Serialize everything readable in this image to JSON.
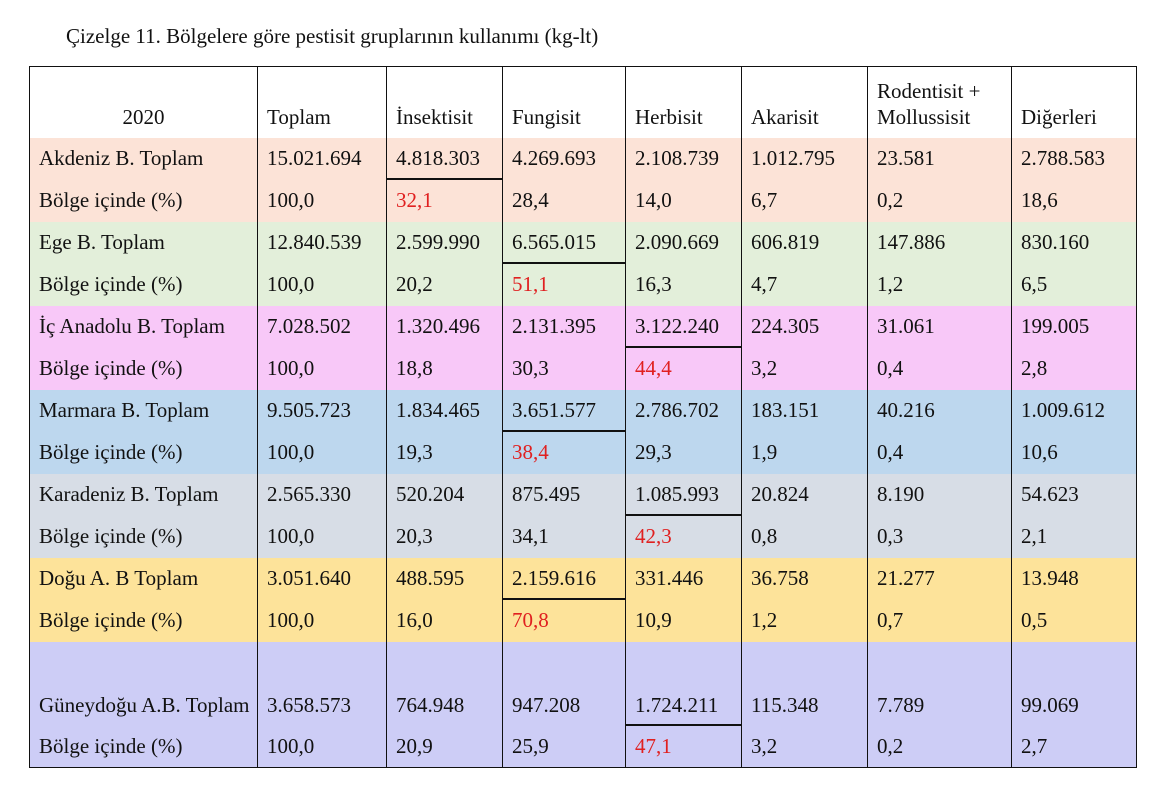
{
  "caption": "Çizelge 11. Bölgelere göre pestisit gruplarının kullanımı (kg-lt)",
  "colors": {
    "akdeniz": "#fce3d7",
    "ege": "#e3efda",
    "ic_anadolu": "#f8c8f8",
    "marmara": "#bdd7ee",
    "karadeniz": "#d7dde6",
    "dogu": "#fde39a",
    "guneydogu": "#cdcdf6",
    "highlight_text": "#e02020"
  },
  "headers": {
    "year": "2020",
    "toplam": "Toplam",
    "insektisit": "İnsektisit",
    "fungisit": "Fungisit",
    "herbisit": "Herbisit",
    "akarisit": "Akarisit",
    "rodentisit": "Rodentisit + Mollussisit",
    "digerleri": "Diğerleri"
  },
  "rows": [
    {
      "label": "Akdeniz B. Toplam",
      "toplam": "15.021.694",
      "insektisit": "4.818.303",
      "fungisit": "4.269.693",
      "herbisit": "2.108.739",
      "akarisit": "1.012.795",
      "rodentisit": "23.581",
      "digerleri": "2.788.583"
    },
    {
      "label": "Bölge içinde (%)",
      "toplam": "100,0",
      "insektisit": "32,1",
      "fungisit": "28,4",
      "herbisit": "14,0",
      "akarisit": "6,7",
      "rodentisit": "0,2",
      "digerleri": "18,6"
    },
    {
      "label": "Ege B. Toplam",
      "toplam": "12.840.539",
      "insektisit": "2.599.990",
      "fungisit": "6.565.015",
      "herbisit": "2.090.669",
      "akarisit": "606.819",
      "rodentisit": "147.886",
      "digerleri": "830.160"
    },
    {
      "label": "Bölge içinde (%)",
      "toplam": "100,0",
      "insektisit": "20,2",
      "fungisit": "51,1",
      "herbisit": "16,3",
      "akarisit": "4,7",
      "rodentisit": "1,2",
      "digerleri": "6,5"
    },
    {
      "label": "İç Anadolu B. Toplam",
      "toplam": "7.028.502",
      "insektisit": "1.320.496",
      "fungisit": "2.131.395",
      "herbisit": "3.122.240",
      "akarisit": "224.305",
      "rodentisit": "31.061",
      "digerleri": "199.005"
    },
    {
      "label": "Bölge içinde (%)",
      "toplam": "100,0",
      "insektisit": "18,8",
      "fungisit": "30,3",
      "herbisit": "44,4",
      "akarisit": "3,2",
      "rodentisit": "0,4",
      "digerleri": "2,8"
    },
    {
      "label": "Marmara B. Toplam",
      "toplam": "9.505.723",
      "insektisit": "1.834.465",
      "fungisit": "3.651.577",
      "herbisit": "2.786.702",
      "akarisit": "183.151",
      "rodentisit": "40.216",
      "digerleri": "1.009.612"
    },
    {
      "label": "Bölge içinde (%)",
      "toplam": "100,0",
      "insektisit": "19,3",
      "fungisit": "38,4",
      "herbisit": "29,3",
      "akarisit": "1,9",
      "rodentisit": "0,4",
      "digerleri": "10,6"
    },
    {
      "label": "Karadeniz B. Toplam",
      "toplam": "2.565.330",
      "insektisit": "520.204",
      "fungisit": "875.495",
      "herbisit": "1.085.993",
      "akarisit": "20.824",
      "rodentisit": "8.190",
      "digerleri": "54.623"
    },
    {
      "label": "Bölge içinde (%)",
      "toplam": "100,0",
      "insektisit": "20,3",
      "fungisit": "34,1",
      "herbisit": "42,3",
      "akarisit": "0,8",
      "rodentisit": "0,3",
      "digerleri": "2,1"
    },
    {
      "label": "Doğu A. B Toplam",
      "toplam": "3.051.640",
      "insektisit": "488.595",
      "fungisit": "2.159.616",
      "herbisit": "331.446",
      "akarisit": "36.758",
      "rodentisit": "21.277",
      "digerleri": "13.948"
    },
    {
      "label": "Bölge içinde (%)",
      "toplam": "100,0",
      "insektisit": "16,0",
      "fungisit": "70,8",
      "herbisit": "10,9",
      "akarisit": "1,2",
      "rodentisit": "0,7",
      "digerleri": "0,5"
    },
    {
      "label": "Güneydoğu A.B. Toplam",
      "toplam": "3.658.573",
      "insektisit": "764.948",
      "fungisit": "947.208",
      "herbisit": "1.724.211",
      "akarisit": "115.348",
      "rodentisit": "7.789",
      "digerleri": "99.069"
    },
    {
      "label": "Bölge içinde (%)",
      "toplam": "100,0",
      "insektisit": "20,9",
      "fungisit": "25,9",
      "herbisit": "47,1",
      "akarisit": "3,2",
      "rodentisit": "0,2",
      "digerleri": "2,7"
    }
  ]
}
